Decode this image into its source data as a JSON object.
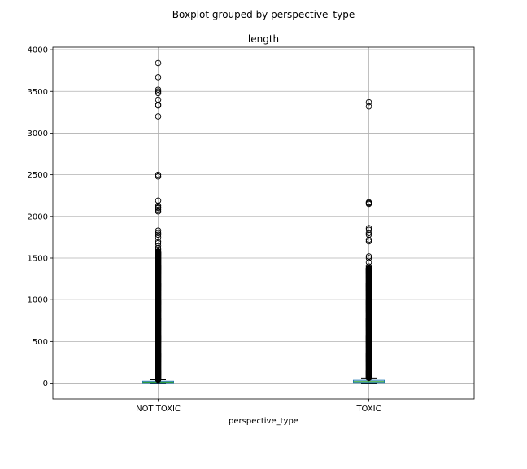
{
  "chart_data": {
    "type": "boxplot",
    "suptitle": "Boxplot grouped by perspective_type",
    "title": "length",
    "xlabel": "perspective_type",
    "ylabel": "",
    "categories": [
      "NOT TOXIC",
      "TOXIC"
    ],
    "ylim": [
      -190,
      4030
    ],
    "yticks": [
      0,
      500,
      1000,
      1500,
      2000,
      2500,
      3000,
      3500,
      4000
    ],
    "grid": true,
    "colors": {
      "box": "#1f77b4",
      "median": "#2ca02c",
      "whisker": "#000000",
      "grid": "#b0b0b0"
    },
    "boxes": [
      {
        "name": "NOT TOXIC",
        "whislo": 0,
        "q1": 5,
        "med": 12,
        "q3": 22,
        "whishi": 40,
        "dense_flier_range": [
          40,
          1580
        ],
        "fliers": [
          1600,
          1620,
          1650,
          1680,
          1700,
          1750,
          1780,
          1800,
          1830,
          2060,
          2080,
          2100,
          2110,
          2130,
          2190,
          2480,
          2500,
          3200,
          3330,
          3340,
          3400,
          3480,
          3500,
          3520,
          3670,
          3840
        ]
      },
      {
        "name": "TOXIC",
        "whislo": 0,
        "q1": 8,
        "med": 18,
        "q3": 33,
        "whishi": 60,
        "dense_flier_range": [
          60,
          1380
        ],
        "fliers": [
          1400,
          1450,
          1500,
          1520,
          1700,
          1720,
          1780,
          1800,
          1840,
          1860,
          2150,
          2160,
          2170,
          3320,
          3370
        ]
      }
    ]
  }
}
